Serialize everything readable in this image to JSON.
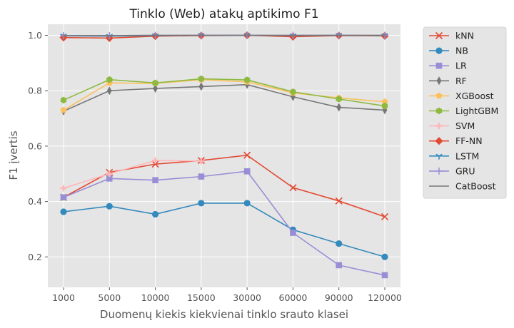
{
  "chart_data": {
    "type": "line",
    "title": "Tinklo (Web) atakų aptikimo F1",
    "xlabel": "Duomenų kiekis kiekvienai tinklo srauto klasei",
    "ylabel": "F1 įvertis",
    "categories": [
      "1000",
      "5000",
      "10000",
      "15000",
      "30000",
      "60000",
      "90000",
      "120000"
    ],
    "ylim": [
      0.09,
      1.04
    ],
    "yticks": [
      "0.2",
      "0.4",
      "0.6",
      "0.8",
      "1.0"
    ],
    "grid": true,
    "legend_position": "outside-right",
    "series": [
      {
        "name": "kNN",
        "color": "#E24A33",
        "marker": "x",
        "values": [
          0.415,
          0.505,
          0.535,
          0.548,
          0.567,
          0.45,
          0.402,
          0.345
        ]
      },
      {
        "name": "NB",
        "color": "#348ABD",
        "marker": "circle",
        "values": [
          0.363,
          0.383,
          0.354,
          0.394,
          0.394,
          0.298,
          0.248,
          0.2
        ]
      },
      {
        "name": "LR",
        "color": "#988ED5",
        "marker": "square",
        "values": [
          0.415,
          0.483,
          0.477,
          0.49,
          0.509,
          0.287,
          0.17,
          0.134
        ]
      },
      {
        "name": "RF",
        "color": "#777777",
        "marker": "thin_diamond",
        "values": [
          0.726,
          0.8,
          0.808,
          0.815,
          0.822,
          0.778,
          0.74,
          0.73
        ]
      },
      {
        "name": "XGBoost",
        "color": "#FBC15E",
        "marker": "pentagon",
        "values": [
          0.73,
          0.828,
          0.826,
          0.84,
          0.832,
          0.792,
          0.774,
          0.76
        ]
      },
      {
        "name": "LightGBM",
        "color": "#8EBA42",
        "marker": "hexagon",
        "values": [
          0.766,
          0.84,
          0.828,
          0.843,
          0.839,
          0.796,
          0.77,
          0.745
        ]
      },
      {
        "name": "SVM",
        "color": "#FFB5B8",
        "marker": "plus",
        "values": [
          0.448,
          0.5,
          0.548,
          0.546,
          null,
          null,
          null,
          null
        ]
      },
      {
        "name": "FF-NN",
        "color": "#E24A33",
        "marker": "diamond",
        "values": [
          0.992,
          0.99,
          0.997,
          0.999,
          1.0,
          0.995,
          0.999,
          0.998
        ]
      },
      {
        "name": "LSTM",
        "color": "#348ABD",
        "marker": "tri_down",
        "values": [
          0.998,
          0.997,
          0.999,
          1.0,
          1.0,
          0.999,
          1.0,
          0.999
        ]
      },
      {
        "name": "GRU",
        "color": "#988ED5",
        "marker": "vline",
        "values": [
          0.999,
          0.999,
          1.0,
          1.0,
          1.0,
          1.0,
          1.0,
          1.0
        ]
      },
      {
        "name": "CatBoost",
        "color": "#777777",
        "marker": "none",
        "values": [
          0.999,
          0.999,
          1.0,
          1.0,
          1.0,
          1.0,
          1.0,
          1.0
        ]
      }
    ]
  }
}
